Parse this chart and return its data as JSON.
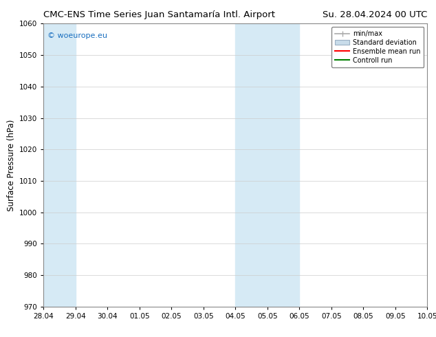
{
  "title_left": "CMC-ENS Time Series Juan Santamaría Intl. Airport",
  "title_right": "Su. 28.04.2024 00 UTC",
  "ylabel": "Surface Pressure (hPa)",
  "ylim": [
    970,
    1060
  ],
  "yticks": [
    970,
    980,
    990,
    1000,
    1010,
    1020,
    1030,
    1040,
    1050,
    1060
  ],
  "xlim_start": 0,
  "xlim_end": 12,
  "xtick_labels": [
    "28.04",
    "29.04",
    "30.04",
    "01.05",
    "02.05",
    "03.05",
    "04.05",
    "05.05",
    "06.05",
    "07.05",
    "08.05",
    "09.05",
    "10.05"
  ],
  "xtick_positions": [
    0,
    1,
    2,
    3,
    4,
    5,
    6,
    7,
    8,
    9,
    10,
    11,
    12
  ],
  "shaded_regions": [
    {
      "xmin": 0.0,
      "xmax": 1.0,
      "color": "#d6eaf5"
    },
    {
      "xmin": 6.0,
      "xmax": 8.0,
      "color": "#d6eaf5"
    }
  ],
  "watermark_text": "© woeurope.eu",
  "watermark_color": "#1a6fbf",
  "background_color": "#ffffff",
  "plot_bg_color": "#ffffff",
  "legend_items": [
    {
      "label": "min/max",
      "color": "#aaaaaa",
      "style": "minmax"
    },
    {
      "label": "Standard deviation",
      "color": "#c8dcea",
      "style": "fill"
    },
    {
      "label": "Ensemble mean run",
      "color": "#ff0000",
      "style": "line"
    },
    {
      "label": "Controll run",
      "color": "#008000",
      "style": "line"
    }
  ],
  "title_fontsize": 9.5,
  "axis_fontsize": 8.5,
  "tick_fontsize": 7.5,
  "legend_fontsize": 7.0,
  "watermark_fontsize": 8.0
}
